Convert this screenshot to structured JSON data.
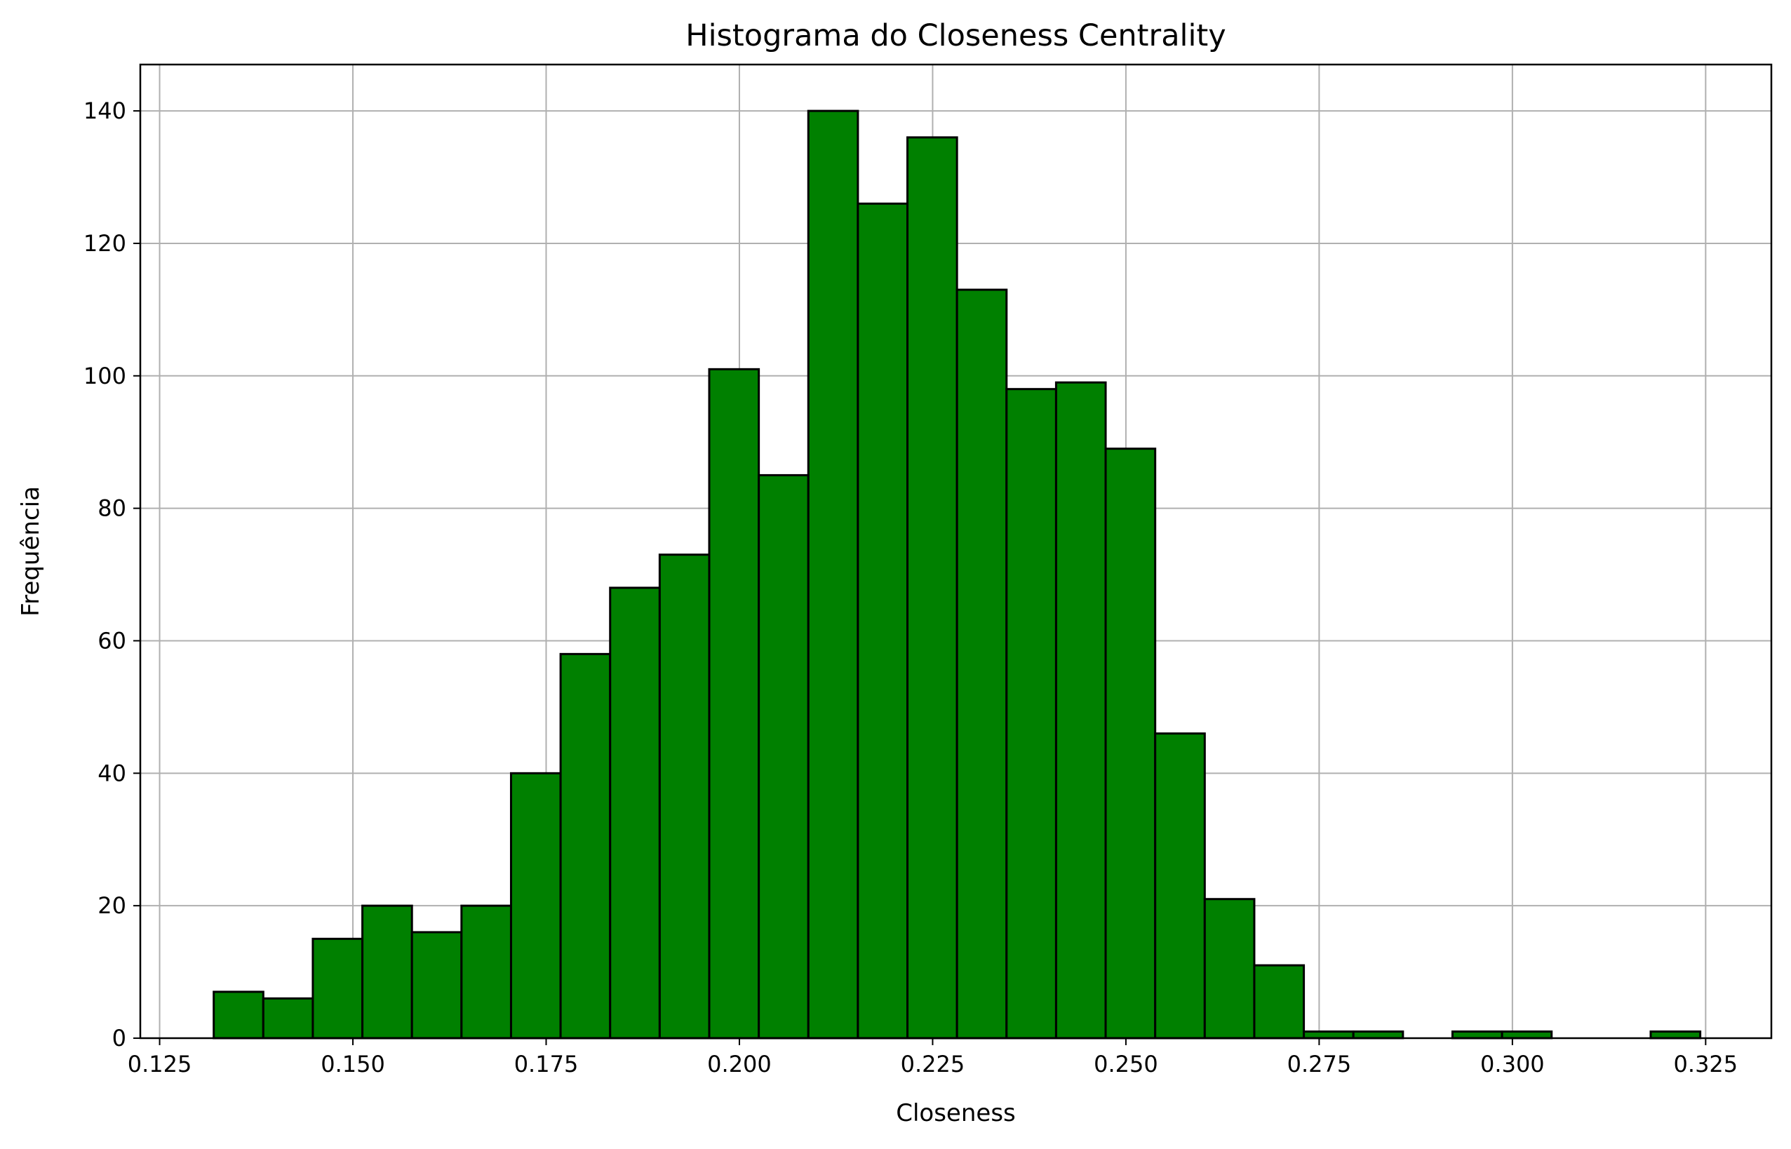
{
  "chart_data": {
    "type": "bar",
    "title": "Histograma do Closeness Centrality",
    "xlabel": "Closeness",
    "ylabel": "Frequência",
    "xlim": [
      0.1225,
      0.3335
    ],
    "ylim": [
      0,
      147
    ],
    "xticks": [
      0.125,
      0.15,
      0.175,
      0.2,
      0.225,
      0.25,
      0.275,
      0.3,
      0.325
    ],
    "xtick_labels": [
      "0.125",
      "0.150",
      "0.175",
      "0.200",
      "0.225",
      "0.250",
      "0.275",
      "0.300",
      "0.325"
    ],
    "yticks": [
      0,
      20,
      40,
      60,
      80,
      100,
      120,
      140
    ],
    "ytick_labels": [
      "0",
      "20",
      "40",
      "60",
      "80",
      "100",
      "120",
      "140"
    ],
    "bin_start": 0.132,
    "bin_width": 0.00641,
    "values": [
      7,
      6,
      15,
      20,
      16,
      20,
      40,
      58,
      68,
      73,
      101,
      85,
      140,
      126,
      136,
      113,
      98,
      99,
      89,
      46,
      21,
      11,
      1,
      1,
      0,
      1,
      1,
      0,
      0,
      1
    ],
    "bar_color": "#008000",
    "edge_color": "#000000",
    "grid": true,
    "grid_color": "#b0b0b0"
  }
}
